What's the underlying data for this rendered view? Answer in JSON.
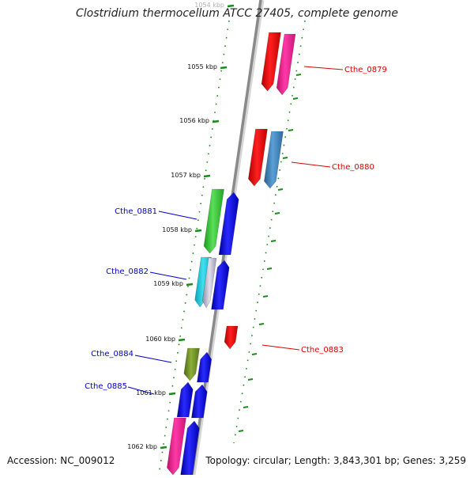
{
  "title": "Clostridium thermocellum ATCC 27405, complete genome",
  "footer": {
    "accession": "Accession: NC_009012",
    "topology": "Topology: circular; Length: 3,843,301 bp; Genes: 3,259"
  },
  "colors": {
    "backbone": "#8a8a8a",
    "tick": "#1a8a1a",
    "label_forward": "#dd0000",
    "label_reverse": "#0000cc"
  },
  "ticks": [
    {
      "label": "1054 kbp"
    },
    {
      "label": "1055 kbp"
    },
    {
      "label": "1056 kbp"
    },
    {
      "label": "1057 kbp"
    },
    {
      "label": "1058 kbp"
    },
    {
      "label": "1059 kbp"
    },
    {
      "label": "1060 kbp"
    },
    {
      "label": "1061 kbp"
    },
    {
      "label": "1062 kbp"
    }
  ],
  "labels": [
    {
      "text": "Cthe_0879",
      "strand": "forward"
    },
    {
      "text": "Cthe_0880",
      "strand": "forward"
    },
    {
      "text": "Cthe_0881",
      "strand": "reverse"
    },
    {
      "text": "Cthe_0882",
      "strand": "reverse"
    },
    {
      "text": "Cthe_0883",
      "strand": "forward"
    },
    {
      "text": "Cthe_0884",
      "strand": "reverse"
    },
    {
      "text": "Cthe_0885",
      "strand": "reverse"
    }
  ]
}
